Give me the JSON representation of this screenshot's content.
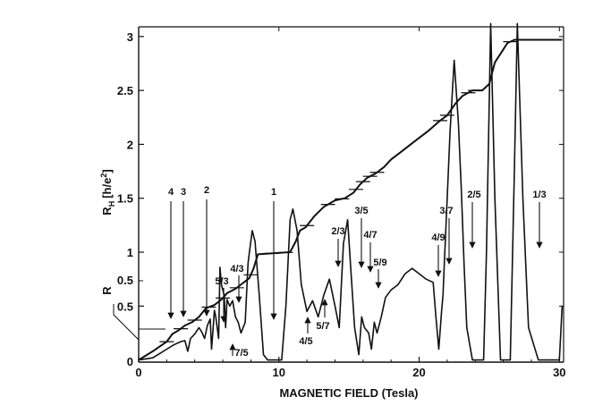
{
  "chart_data": {
    "type": "line",
    "title": "",
    "xlabel": "MAGNETIC FIELD (Tesla)",
    "ylabel": "R_H [h/e²]",
    "ylabel_main": "R",
    "ylabel_sub": "H",
    "ylabel_unit": "[h/e",
    "ylabel_sup": "2",
    "ylabel_close": "]",
    "ylabel_low": "R",
    "xlim": [
      0,
      30.3
    ],
    "ylim": [
      -0.02,
      3.09
    ],
    "x_ticks": [
      "0",
      "10",
      "20",
      "30"
    ],
    "x_tick_values": [
      0,
      10,
      20,
      30
    ],
    "y_ticks": [
      "0",
      "0.5",
      "1",
      "1.5",
      "2",
      "2.5",
      "3"
    ],
    "y_tick_values": [
      0,
      0.5,
      1,
      1.5,
      2,
      2.5,
      3
    ],
    "y_ticks_low": [
      "0",
      "0.5"
    ],
    "y_ticks_low_values": [
      0,
      0.5
    ],
    "grid": false,
    "legend": "none",
    "series": [
      {
        "x": [
          0.0,
          1.0,
          2.0,
          2.4,
          2.9,
          3.3,
          3.8,
          4.3,
          4.8,
          5.4,
          5.9,
          6.3,
          6.9,
          7.4,
          7.9,
          8.2,
          8.5,
          10.8,
          11.2,
          11.5,
          11.9,
          12.5,
          13.2,
          14.0,
          14.7,
          15.3,
          15.8,
          16.3,
          16.9,
          17.5,
          18.0,
          18.7,
          19.7,
          20.7,
          21.4,
          22.0,
          22.6,
          23.1,
          23.8,
          24.5,
          25.0,
          25.4,
          26.3,
          26.8,
          30.2
        ],
        "values": [
          0.0,
          0.08,
          0.17,
          0.24,
          0.28,
          0.32,
          0.35,
          0.4,
          0.48,
          0.51,
          0.56,
          0.62,
          0.66,
          0.71,
          0.76,
          0.85,
          0.98,
          1.0,
          1.1,
          1.2,
          1.23,
          1.33,
          1.42,
          1.48,
          1.5,
          1.55,
          1.63,
          1.69,
          1.73,
          1.79,
          1.86,
          1.93,
          2.03,
          2.13,
          2.21,
          2.27,
          2.38,
          2.45,
          2.5,
          2.5,
          2.56,
          2.76,
          2.94,
          2.97,
          2.97
        ]
      },
      {
        "x": [
          0.0,
          1.0,
          1.5,
          2.0,
          2.5,
          3.0,
          3.3,
          3.5,
          3.7,
          4.0,
          4.3,
          4.5,
          4.7,
          4.9,
          5.1,
          5.2,
          5.4,
          5.5,
          5.7,
          5.8,
          5.9,
          6.1,
          6.2,
          6.3,
          6.5,
          6.7,
          6.9,
          7.1,
          7.3,
          7.6,
          7.8,
          7.9,
          8.1,
          8.3,
          8.6,
          8.9,
          9.2,
          10.2,
          10.5,
          10.8,
          11.0,
          11.3,
          11.6,
          12.0,
          12.4,
          12.8,
          13.2,
          13.6,
          14.0,
          14.3,
          14.6,
          14.9,
          15.1,
          15.4,
          15.7,
          15.9,
          16.1,
          16.4,
          16.6,
          16.8,
          17.0,
          17.3,
          17.6,
          18.0,
          18.5,
          19.0,
          19.5,
          20.0,
          20.5,
          21.0,
          21.2,
          21.4,
          21.6,
          21.7,
          21.8,
          22.0,
          22.2,
          22.5,
          22.8,
          23.0,
          23.2,
          23.4,
          23.8,
          24.2,
          24.6,
          24.8,
          25.1,
          25.4,
          25.8,
          26.1,
          26.5,
          26.8,
          27.0,
          27.4,
          27.8,
          28.5,
          29.0,
          29.5,
          30.0,
          30.2
        ],
        "values": [
          0.0,
          0.02,
          0.06,
          0.1,
          0.14,
          0.17,
          0.18,
          0.08,
          0.2,
          0.24,
          0.3,
          0.26,
          0.2,
          0.32,
          0.38,
          0.1,
          0.46,
          0.4,
          0.2,
          0.86,
          0.7,
          0.6,
          0.3,
          0.56,
          0.5,
          0.55,
          0.4,
          0.35,
          0.25,
          0.35,
          0.9,
          1.0,
          1.2,
          1.1,
          0.6,
          0.05,
          0.0,
          0.0,
          0.5,
          1.3,
          1.4,
          1.2,
          0.7,
          0.45,
          0.55,
          0.4,
          0.6,
          0.75,
          0.5,
          0.3,
          1.08,
          1.3,
          0.9,
          0.3,
          0.05,
          0.4,
          0.3,
          0.25,
          0.1,
          0.35,
          0.25,
          0.4,
          0.58,
          0.65,
          0.7,
          0.8,
          0.85,
          0.8,
          0.75,
          0.72,
          0.4,
          0.1,
          0.45,
          0.6,
          0.9,
          1.5,
          2.1,
          2.78,
          2.2,
          1.6,
          0.9,
          0.3,
          0.0,
          0.0,
          0.0,
          1.0,
          3.4,
          1.5,
          0.0,
          0.0,
          0.0,
          1.8,
          3.4,
          1.5,
          0.3,
          0.0,
          0.0,
          0.0,
          0.0,
          0.5
        ]
      }
    ],
    "annotations": {
      "fractions": [
        "4",
        "3",
        "2",
        "1",
        "5/3",
        "4/3",
        "7/5",
        "4/5",
        "2/3",
        "5/7",
        "3/5",
        "4/7",
        "5/9",
        "4/9",
        "3/7",
        "2/5",
        "1/3"
      ]
    },
    "colors": {
      "ink": "#111111",
      "background": "#ffffff"
    }
  }
}
